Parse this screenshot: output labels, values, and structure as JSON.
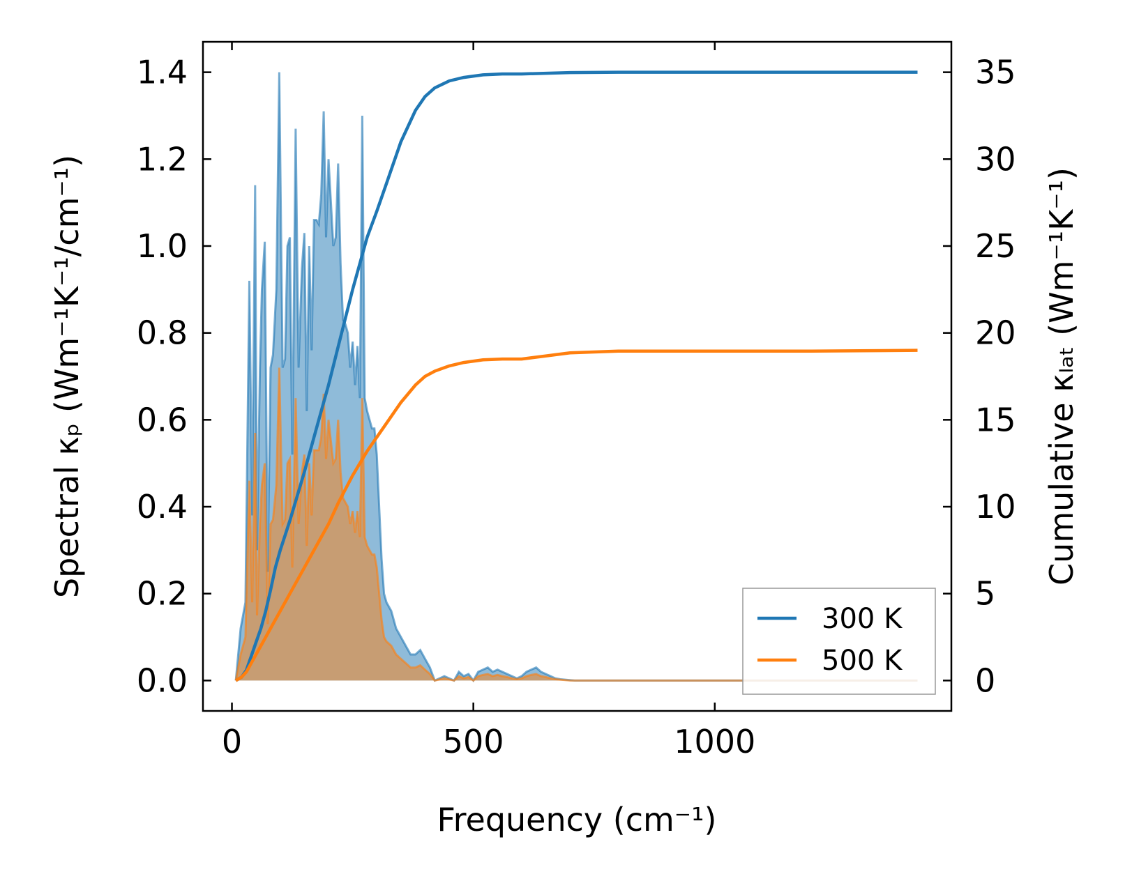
{
  "chart_data": {
    "type": "area",
    "xlabel": "Frequency (cm⁻¹)",
    "ylabel_left": "Spectral κₚ (Wm⁻¹K⁻¹/cm⁻¹)",
    "ylabel_right": "Cumulative κₗₐₜ (Wm⁻¹K⁻¹)",
    "xlim": [
      -60,
      1490
    ],
    "ylim_left": [
      -0.07,
      1.47
    ],
    "ylim_right": [
      -1.75,
      36.75
    ],
    "x_ticks": [
      "0",
      "500",
      "1000"
    ],
    "x_tick_values": [
      0,
      500,
      1000
    ],
    "y_left_ticks": [
      "0.0",
      "0.2",
      "0.4",
      "0.6",
      "0.8",
      "1.0",
      "1.2",
      "1.4"
    ],
    "y_left_tick_values": [
      0,
      0.2,
      0.4,
      0.6,
      0.8,
      1.0,
      1.2,
      1.4
    ],
    "y_right_ticks": [
      "0",
      "5",
      "10",
      "15",
      "20",
      "25",
      "30",
      "35"
    ],
    "y_right_tick_values": [
      0,
      5,
      10,
      15,
      20,
      25,
      30,
      35
    ],
    "legend_position": "lower-right",
    "series": [
      {
        "name": "300 K",
        "color": "#1f77b4",
        "spectral": {
          "x": [
            8,
            18,
            28,
            36,
            42,
            48,
            52,
            58,
            62,
            68,
            74,
            80,
            85,
            92,
            98,
            105,
            110,
            115,
            120,
            125,
            132,
            138,
            145,
            150,
            155,
            160,
            165,
            170,
            175,
            180,
            185,
            190,
            195,
            200,
            210,
            215,
            220,
            225,
            230,
            235,
            240,
            245,
            250,
            255,
            260,
            265,
            270,
            275,
            280,
            290,
            295,
            300,
            310,
            315,
            320,
            330,
            340,
            350,
            360,
            370,
            380,
            390,
            400,
            410,
            420,
            440,
            460,
            470,
            480,
            490,
            500,
            505,
            510,
            520,
            530,
            540,
            550,
            560,
            570,
            580,
            590,
            600,
            610,
            620,
            630,
            640,
            650,
            660,
            670,
            680,
            690,
            700,
            710,
            720,
            730,
            740,
            760,
            780,
            800,
            820,
            850,
            900,
            950,
            1000,
            1100,
            1200,
            1300,
            1400,
            1420
          ],
          "y": [
            0.0,
            0.12,
            0.18,
            0.92,
            0.38,
            1.14,
            0.3,
            0.72,
            0.9,
            1.01,
            0.25,
            0.72,
            0.75,
            0.9,
            1.4,
            0.72,
            0.74,
            1.0,
            1.02,
            0.52,
            1.27,
            0.72,
            0.95,
            1.03,
            0.62,
            1.0,
            0.76,
            1.06,
            1.06,
            1.05,
            1.12,
            1.31,
            1.02,
            1.2,
            1.0,
            1.02,
            1.19,
            0.96,
            0.83,
            0.82,
            0.8,
            0.72,
            0.78,
            0.68,
            0.77,
            0.65,
            1.3,
            0.65,
            0.62,
            0.58,
            0.58,
            0.52,
            0.28,
            0.2,
            0.18,
            0.16,
            0.12,
            0.1,
            0.08,
            0.06,
            0.06,
            0.07,
            0.05,
            0.03,
            0.0,
            0.01,
            0.0,
            0.02,
            0.01,
            0.015,
            0.0,
            0.01,
            0.02,
            0.025,
            0.03,
            0.02,
            0.025,
            0.02,
            0.015,
            0.01,
            0.005,
            0.01,
            0.02,
            0.025,
            0.03,
            0.02,
            0.015,
            0.01,
            0.005,
            0.003,
            0.002,
            0.001,
            0.0,
            0.0,
            0.0,
            0.0,
            0.0,
            0.0,
            0.0,
            0.0,
            0.0,
            0.0,
            0.0,
            0.0,
            0.0,
            0.0,
            0.0,
            0.0,
            0.0
          ]
        },
        "cumulative": {
          "x": [
            8,
            20,
            30,
            40,
            50,
            60,
            70,
            80,
            90,
            100,
            120,
            150,
            180,
            200,
            220,
            250,
            280,
            300,
            320,
            350,
            380,
            400,
            420,
            450,
            480,
            520,
            560,
            600,
            700,
            800,
            900,
            1000,
            1100,
            1200,
            1300,
            1420
          ],
          "y": [
            0.0,
            0.2,
            0.6,
            1.4,
            2.2,
            3.0,
            4.0,
            5.2,
            6.5,
            7.5,
            9.2,
            12.0,
            15.0,
            17.0,
            19.2,
            22.5,
            25.5,
            27.0,
            28.6,
            31.0,
            32.8,
            33.6,
            34.1,
            34.5,
            34.7,
            34.85,
            34.9,
            34.9,
            34.98,
            35.0,
            35.0,
            35.0,
            35.0,
            35.0,
            35.0,
            35.0
          ]
        }
      },
      {
        "name": "500 K",
        "color": "#ff7f0e",
        "spectral": {
          "x": [
            8,
            18,
            28,
            36,
            42,
            48,
            52,
            58,
            62,
            68,
            74,
            80,
            85,
            92,
            98,
            105,
            110,
            115,
            120,
            125,
            132,
            138,
            145,
            150,
            155,
            160,
            165,
            170,
            175,
            180,
            185,
            190,
            195,
            200,
            210,
            215,
            220,
            225,
            230,
            235,
            240,
            245,
            250,
            255,
            260,
            265,
            270,
            275,
            280,
            290,
            295,
            300,
            310,
            315,
            320,
            330,
            340,
            350,
            360,
            370,
            380,
            390,
            400,
            410,
            420,
            440,
            460,
            470,
            480,
            490,
            500,
            505,
            510,
            520,
            530,
            540,
            550,
            560,
            570,
            580,
            590,
            600,
            610,
            620,
            630,
            640,
            650,
            660,
            670,
            680,
            690,
            700,
            710,
            720,
            730,
            740,
            760,
            780,
            800,
            820,
            850,
            900,
            950,
            1000,
            1100,
            1200,
            1300,
            1400,
            1420
          ],
          "y": [
            0.0,
            0.06,
            0.1,
            0.46,
            0.18,
            0.57,
            0.15,
            0.36,
            0.45,
            0.5,
            0.13,
            0.36,
            0.37,
            0.45,
            0.72,
            0.36,
            0.37,
            0.5,
            0.51,
            0.26,
            0.65,
            0.36,
            0.48,
            0.52,
            0.31,
            0.5,
            0.38,
            0.53,
            0.53,
            0.53,
            0.56,
            0.66,
            0.51,
            0.6,
            0.5,
            0.51,
            0.6,
            0.48,
            0.42,
            0.41,
            0.4,
            0.36,
            0.39,
            0.34,
            0.39,
            0.33,
            0.65,
            0.33,
            0.31,
            0.29,
            0.29,
            0.26,
            0.14,
            0.1,
            0.09,
            0.08,
            0.06,
            0.05,
            0.04,
            0.03,
            0.03,
            0.035,
            0.025,
            0.015,
            0.0,
            0.005,
            0.0,
            0.01,
            0.005,
            0.008,
            0.0,
            0.005,
            0.01,
            0.013,
            0.015,
            0.01,
            0.013,
            0.01,
            0.008,
            0.005,
            0.003,
            0.005,
            0.01,
            0.013,
            0.015,
            0.01,
            0.008,
            0.005,
            0.003,
            0.002,
            0.001,
            0.0,
            0.0,
            0.0,
            0.0,
            0.0,
            0.0,
            0.0,
            0.0,
            0.0,
            0.0,
            0.0,
            0.0,
            0.0,
            0.0,
            0.0,
            0.0,
            0.0,
            0.0
          ]
        },
        "cumulative": {
          "x": [
            8,
            20,
            30,
            40,
            50,
            60,
            80,
            100,
            120,
            150,
            180,
            200,
            220,
            250,
            280,
            300,
            320,
            350,
            380,
            400,
            420,
            450,
            480,
            520,
            560,
            600,
            700,
            800,
            900,
            1000,
            1100,
            1200,
            1300,
            1420
          ],
          "y": [
            0.0,
            0.2,
            0.5,
            1.0,
            1.5,
            2.0,
            3.0,
            4.0,
            5.0,
            6.5,
            8.0,
            9.0,
            10.2,
            11.8,
            13.2,
            14.0,
            14.8,
            16.0,
            17.0,
            17.5,
            17.8,
            18.1,
            18.3,
            18.45,
            18.5,
            18.5,
            18.85,
            18.95,
            18.95,
            18.95,
            18.95,
            18.95,
            18.97,
            19.0
          ]
        }
      }
    ]
  }
}
